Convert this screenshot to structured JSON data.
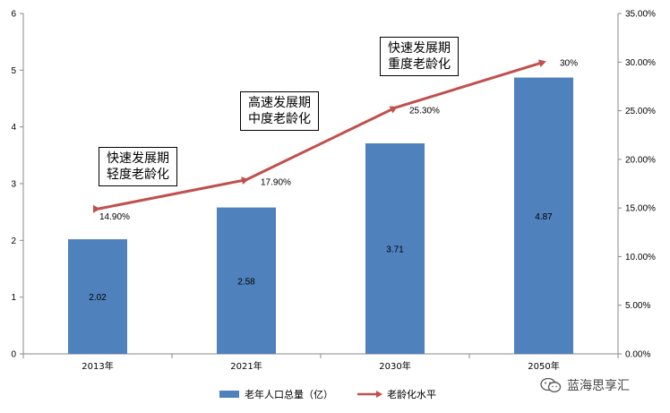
{
  "chart_data": {
    "type": "bar+line",
    "categories": [
      "2013年",
      "2021年",
      "2030年",
      "2050年"
    ],
    "series": [
      {
        "name": "老年人口总量（亿）",
        "type": "bar",
        "axis": "left",
        "values": [
          2.02,
          2.58,
          3.71,
          4.87
        ],
        "labels": [
          "2.02",
          "2.58",
          "3.71",
          "4.87"
        ],
        "color": "#4f81bd"
      },
      {
        "name": "老龄化水平",
        "type": "line",
        "axis": "right",
        "values": [
          14.9,
          17.9,
          25.3,
          30
        ],
        "labels": [
          "14.90%",
          "17.90%",
          "25.30%",
          "30%"
        ],
        "color": "#c0504d"
      }
    ],
    "y_left": {
      "ylim": [
        0,
        6
      ],
      "ticks": [
        "0",
        "1",
        "2",
        "3",
        "4",
        "5",
        "6"
      ]
    },
    "y_right": {
      "ylim": [
        0,
        35
      ],
      "ticks": [
        "0.00%",
        "5.00%",
        "10.00%",
        "15.00%",
        "20.00%",
        "25.00%",
        "30.00%",
        "35.00%"
      ]
    },
    "annotations": [
      {
        "line1": "快速发展期",
        "line2": "轻度老龄化"
      },
      {
        "line1": "高速发展期",
        "line2": "中度老龄化"
      },
      {
        "line1": "快速发展期",
        "line2": "重度老龄化"
      }
    ],
    "legend_position": "bottom"
  },
  "legend": {
    "bar_label": "老年人口总量（亿）",
    "line_label": "老龄化水平"
  },
  "watermark": {
    "text": "蓝海思享汇"
  }
}
